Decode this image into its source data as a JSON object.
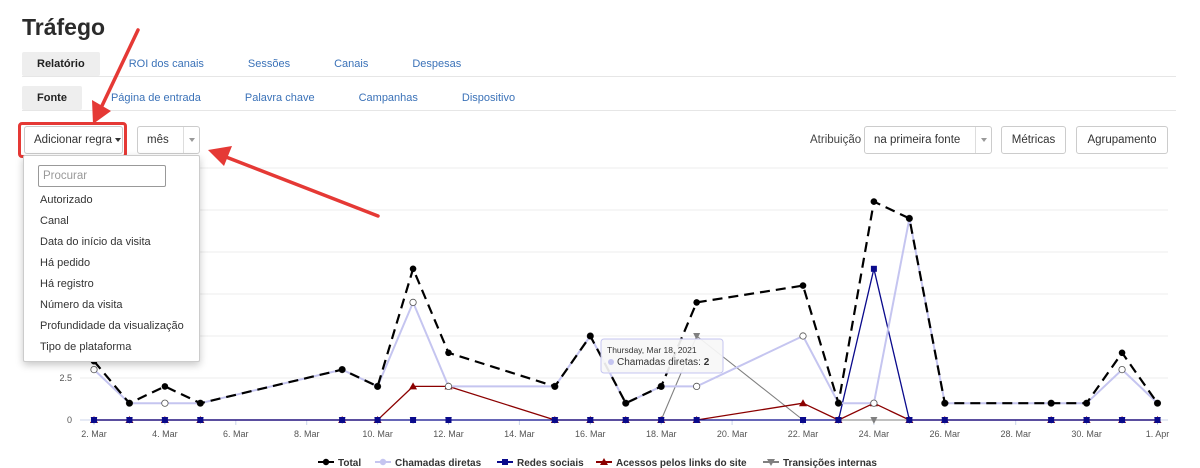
{
  "page": {
    "title": "Tráfego"
  },
  "tabs_row1": [
    {
      "label": "Relatório",
      "active": true
    },
    {
      "label": "ROI dos canais",
      "active": false
    },
    {
      "label": "Sessões",
      "active": false
    },
    {
      "label": "Canais",
      "active": false
    },
    {
      "label": "Despesas",
      "active": false
    }
  ],
  "tabs_row2": [
    {
      "label": "Fonte",
      "active": true
    },
    {
      "label": "Página de entrada",
      "active": false
    },
    {
      "label": "Palavra chave",
      "active": false
    },
    {
      "label": "Campanhas",
      "active": false
    },
    {
      "label": "Dispositivo",
      "active": false
    }
  ],
  "toolbar": {
    "add_rule_label": "Adicionar regra",
    "period_value": "mês",
    "attribution_label": "Atribuição",
    "attribution_value": "na primeira fonte",
    "metrics_label": "Métricas",
    "grouping_label": "Agrupamento"
  },
  "dropdown": {
    "search_placeholder": "Procurar",
    "items": [
      "Autorizado",
      "Canal",
      "Data do início da visita",
      "Há pedido",
      "Há registro",
      "Número da visita",
      "Profundidade da visualização",
      "Tipo de plataforma"
    ]
  },
  "tooltip": {
    "date": "Thursday, Mar 18, 2021",
    "series": "Chamadas diretas",
    "value": "2"
  },
  "colors": {
    "highlight": "#e53935",
    "total": "#000000",
    "chamadas": "#c5c5f0",
    "redes": "#0a0a8c",
    "acessos": "#8b0000",
    "transicoes": "#808080",
    "link": "#3b72b8"
  },
  "chart_data": {
    "type": "line",
    "x": [
      "2. Mar",
      "3. Mar",
      "4. Mar",
      "5. Mar",
      "9. Mar",
      "10. Mar",
      "11. Mar",
      "12. Mar",
      "15. Mar",
      "16. Mar",
      "17. Mar",
      "18. Mar",
      "19. Mar",
      "22. Mar",
      "23. Mar",
      "24. Mar",
      "25. Mar",
      "26. Mar",
      "29. Mar",
      "30. Mar",
      "31. Mar",
      "1. Apr"
    ],
    "x_ticks": [
      "2. Mar",
      "4. Mar",
      "6. Mar",
      "8. Mar",
      "10. Mar",
      "12. Mar",
      "14. Mar",
      "16. Mar",
      "18. Mar",
      "20. Mar",
      "22. Mar",
      "24. Mar",
      "26. Mar",
      "28. Mar",
      "30. Mar",
      "1. Apr"
    ],
    "y_ticks": [
      "0",
      "2.5"
    ],
    "ylim": [
      0,
      15
    ],
    "series": [
      {
        "name": "Total",
        "values": [
          3.5,
          1,
          2,
          1,
          3,
          2,
          9,
          4,
          2,
          5,
          1,
          2,
          7,
          8,
          1,
          13,
          12,
          1,
          1,
          1,
          4,
          1
        ]
      },
      {
        "name": "Chamadas diretas",
        "values": [
          3,
          1,
          1,
          1,
          3,
          2,
          7,
          2,
          2,
          5,
          1,
          2,
          2,
          5,
          1,
          1,
          12,
          1,
          1,
          1,
          3,
          1
        ]
      },
      {
        "name": "Redes sociais",
        "values": [
          0,
          0,
          0,
          0,
          0,
          0,
          0,
          0,
          0,
          0,
          0,
          0,
          0,
          0,
          0,
          9,
          0,
          0,
          0,
          0,
          0,
          0
        ]
      },
      {
        "name": "Acessos pelos links do site",
        "values": [
          0,
          0,
          0,
          0,
          0,
          0,
          2,
          2,
          0,
          0,
          0,
          0,
          0,
          1,
          0,
          1,
          0,
          0,
          0,
          0,
          0,
          0
        ]
      },
      {
        "name": "Transições internas",
        "values": [
          0,
          0,
          0,
          0,
          0,
          0,
          0,
          0,
          0,
          0,
          0,
          0,
          5,
          0,
          0,
          0,
          0,
          0,
          0,
          0,
          0,
          0
        ]
      }
    ]
  }
}
